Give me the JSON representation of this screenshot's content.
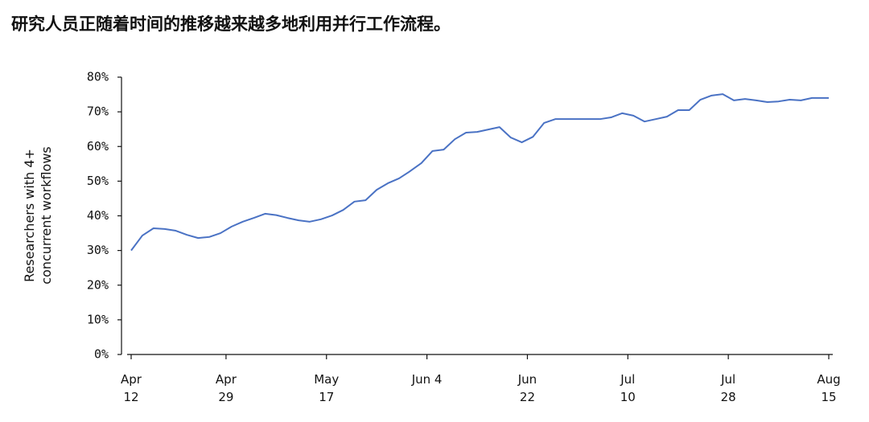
{
  "chart_data": {
    "type": "line",
    "title": "研究人员正随着时间的推移越来越多地利用并行工作流程。",
    "y_label": "Researchers with 4+ concurrent workflows",
    "color": "#4a72c4",
    "x": [
      "Apr 12",
      "Apr 14",
      "Apr 16",
      "Apr 18",
      "Apr 20",
      "Apr 22",
      "Apr 24",
      "Apr 26",
      "Apr 28",
      "Apr 30",
      "May 2",
      "May 4",
      "May 6",
      "May 8",
      "May 10",
      "May 12",
      "May 14",
      "May 16",
      "May 18",
      "May 20",
      "May 22",
      "May 24",
      "May 26",
      "May 28",
      "May 30",
      "Jun 1",
      "Jun 3",
      "Jun 5",
      "Jun 7",
      "Jun 9",
      "Jun 11",
      "Jun 13",
      "Jun 15",
      "Jun 17",
      "Jun 19",
      "Jun 21",
      "Jun 23",
      "Jun 25",
      "Jun 27",
      "Jun 29",
      "Jul 1",
      "Jul 3",
      "Jul 5",
      "Jul 7",
      "Jul 9",
      "Jul 11",
      "Jul 13",
      "Jul 15",
      "Jul 17",
      "Jul 19",
      "Jul 21",
      "Jul 23",
      "Jul 25",
      "Jul 27",
      "Jul 29",
      "Jul 31",
      "Aug 2",
      "Aug 4",
      "Aug 6",
      "Aug 8",
      "Aug 10",
      "Aug 12",
      "Aug 14",
      "Aug 15"
    ],
    "values": [
      30,
      34.3,
      36.4,
      36.2,
      35.7,
      34.5,
      33.6,
      33.9,
      35.0,
      36.9,
      38.3,
      39.4,
      40.6,
      40.2,
      39.4,
      38.7,
      38.3,
      39.0,
      40.1,
      41.7,
      44.1,
      44.5,
      47.5,
      49.4,
      50.8,
      52.9,
      55.2,
      58.7,
      59.1,
      62.1,
      64.0,
      64.2,
      64.9,
      65.6,
      62.6,
      61.2,
      62.8,
      66.8,
      67.9,
      67.9,
      67.9,
      67.9,
      67.9,
      68.4,
      69.6,
      68.9,
      67.2,
      67.9,
      68.6,
      70.5,
      70.5,
      73.5,
      74.7,
      75.1,
      73.3,
      73.7,
      73.3,
      72.8,
      73.0,
      73.5,
      73.3,
      74.0,
      74.0,
      74.0
    ],
    "xlim": [
      "Apr 12",
      "Aug 15"
    ],
    "xticks": [
      "Apr 12",
      "Apr 29",
      "May 17",
      "Jun 4",
      "Jun 22",
      "Jul 10",
      "Jul 28",
      "Aug 15"
    ],
    "ylim": [
      0,
      80
    ],
    "yticks": [
      {
        "value": 0,
        "label": "0%"
      },
      {
        "value": 10,
        "label": "10%"
      },
      {
        "value": 20,
        "label": "20%"
      },
      {
        "value": 30,
        "label": "30%"
      },
      {
        "value": 40,
        "label": "40%"
      },
      {
        "value": 50,
        "label": "50%"
      },
      {
        "value": 60,
        "label": "60%"
      },
      {
        "value": 70,
        "label": "70%"
      },
      {
        "value": 80,
        "label": "80%"
      }
    ]
  }
}
